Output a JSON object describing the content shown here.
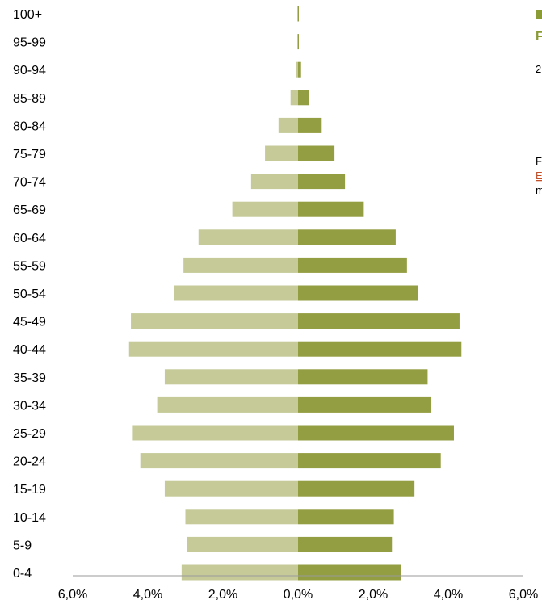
{
  "chart_data": {
    "type": "bar",
    "orientation": "horizontal-pyramid",
    "categories": [
      "0-4",
      "5-9",
      "10-14",
      "15-19",
      "20-24",
      "25-29",
      "30-34",
      "35-39",
      "40-44",
      "45-49",
      "50-54",
      "55-59",
      "60-64",
      "65-69",
      "70-74",
      "75-79",
      "80-84",
      "85-89",
      "90-94",
      "95-99",
      "100+"
    ],
    "series": [
      {
        "side": "left",
        "color": "#c5ca98",
        "values": [
          3.1,
          2.95,
          3.0,
          3.55,
          4.2,
          4.4,
          3.75,
          3.55,
          4.5,
          4.45,
          3.3,
          3.05,
          2.65,
          1.75,
          1.25,
          0.88,
          0.52,
          0.2,
          0.06,
          0.02,
          0.01
        ]
      },
      {
        "side": "right",
        "color": "#939d42",
        "values": [
          2.75,
          2.5,
          2.55,
          3.1,
          3.8,
          4.15,
          3.55,
          3.45,
          4.35,
          4.3,
          3.2,
          2.9,
          2.6,
          1.75,
          1.25,
          0.97,
          0.63,
          0.28,
          0.08,
          0.02,
          0.01
        ]
      }
    ],
    "x_ticks": [
      "6,0%",
      "4,0%",
      "2,0%",
      "0,0%",
      "2,0%",
      "4,0%",
      "6,0%"
    ],
    "xlim": [
      -6,
      6
    ],
    "xlabel": "",
    "ylabel": "",
    "grid": false
  },
  "side_panel": {
    "title_fragment": "F",
    "line1_fragment": "2",
    "line2_fragment": "F",
    "link_fragment": "E",
    "line3_fragment": "m",
    "legend_color": "#8a9a35"
  }
}
